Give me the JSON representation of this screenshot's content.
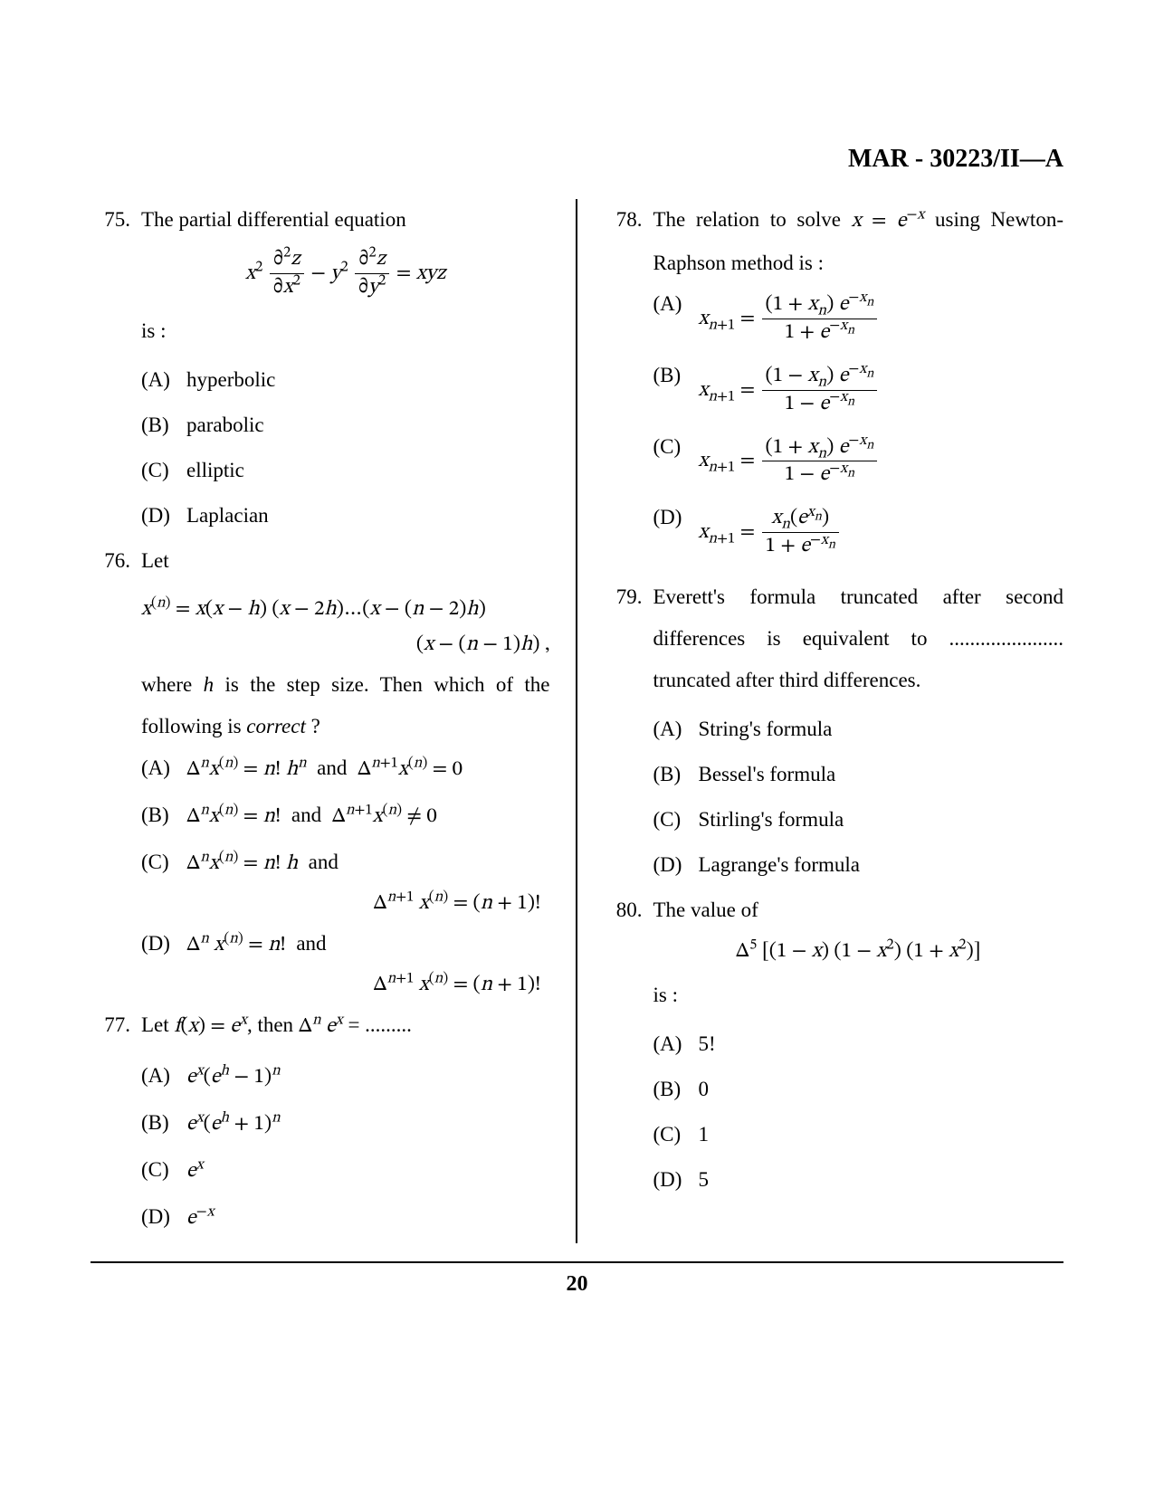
{
  "header": "MAR - 30223/II—A",
  "pageNumber": "20",
  "colors": {
    "text": "#000000",
    "background": "#ffffff",
    "rule": "#000000"
  },
  "typography": {
    "body_fontsize_pt": 17,
    "header_fontsize_pt": 21,
    "line_height": 2.0
  },
  "questions": [
    {
      "num": "75.",
      "stem": "The partial differential equation",
      "equation_html": "<span class='eq'><span class='italic'>x</span><sup>2</sup> <span class='frac'><span class='num'>∂<sup>2</sup><span class='italic'>z</span></span><span class='den'>∂<span class='italic'>x</span><sup>2</sup></span></span> − <span class='italic'>y</span><sup>2</sup> <span class='frac'><span class='num'>∂<sup>2</sup><span class='italic'>z</span></span><span class='den'>∂<span class='italic'>y</span><sup>2</sup></span></span> = <span class='italic'>xyz</span></span>",
      "post": "is :",
      "options": [
        {
          "label": "(A)",
          "html": "hyperbolic"
        },
        {
          "label": "(B)",
          "html": "parabolic"
        },
        {
          "label": "(C)",
          "html": "elliptic"
        },
        {
          "label": "(D)",
          "html": "Laplacian"
        }
      ]
    },
    {
      "num": "76.",
      "stem": "Let",
      "equation_html": "<span class='eq'><span class='italic'>x</span><sup>(<span class='italic'>n</span>)</sup> = <span class='italic'>x</span>(<span class='italic'>x</span> − <span class='italic'>h</span>) (<span class='italic'>x</span> − 2<span class='italic'>h</span>)…(<span class='italic'>x</span> − (<span class='italic'>n</span> − 2)<span class='italic'>h</span>)</span>",
      "equation2_html": "<span class='eq'>(<span class='italic'>x</span> − (<span class='italic'>n</span> − 1)<span class='italic'>h</span>) ,</span>",
      "post_html": "where <span class='italic'>h</span> is the step size. Then which of the following is <span class='italic'>correct</span> ?",
      "options": [
        {
          "label": "(A)",
          "html": "<span class='eq'>Δ<sup><span class='italic'>n</span></sup><span class='italic'>x</span><sup>(<span class='italic'>n</span>)</sup> = <span class='italic'>n</span>! <span class='italic'>h</span><sup><span class='italic'>n</span></sup></span>&nbsp; and &nbsp;<span class='eq'>Δ<sup><span class='italic'>n</span>+1</sup><span class='italic'>x</span><sup>(<span class='italic'>n</span>)</sup> = 0</span>"
        },
        {
          "label": "(B)",
          "html": "<span class='eq'>Δ<sup><span class='italic'>n</span></sup><span class='italic'>x</span><sup>(<span class='italic'>n</span>)</sup> = <span class='italic'>n</span>!</span>&nbsp; and &nbsp;<span class='eq'>Δ<sup><span class='italic'>n</span>+1</sup><span class='italic'>x</span><sup>(<span class='italic'>n</span>)</sup> ≠ 0</span>"
        },
        {
          "label": "(C)",
          "html": "<span class='eq'>Δ<sup><span class='italic'>n</span></sup><span class='italic'>x</span><sup>(<span class='italic'>n</span>)</sup> = <span class='italic'>n</span>! <span class='italic'>h</span></span>&nbsp; and",
          "extra_html": "<span class='eq'>Δ<sup><span class='italic'>n</span>+1</sup> <span class='italic'>x</span><sup>(<span class='italic'>n</span>)</sup> = (<span class='italic'>n</span> + 1)!</span>"
        },
        {
          "label": "(D)",
          "html": "<span class='eq'>Δ<sup><span class='italic'>n</span></sup> <span class='italic'>x</span><sup>(<span class='italic'>n</span>)</sup> = <span class='italic'>n</span>!</span>&nbsp; and",
          "extra_html": "<span class='eq'>Δ<sup><span class='italic'>n</span>+1</sup> <span class='italic'>x</span><sup>(<span class='italic'>n</span>)</sup> = (<span class='italic'>n</span> + 1)!</span>"
        }
      ]
    },
    {
      "num": "77.",
      "stem_html": "Let <span class='eq'><span class='italic'>f</span>(<span class='italic'>x</span>) = <span class='italic'>e</span><sup><span class='italic'>x</span></sup></span>, then <span class='eq'>Δ<sup><span class='italic'>n</span></sup> <span class='italic'>e</span><sup><span class='italic'>x</span></sup></span> = .........",
      "options": [
        {
          "label": "(A)",
          "html": "<span class='eq'><span class='italic'>e</span><sup><span class='italic'>x</span></sup>(<span class='italic'>e</span><sup><span class='italic'>h</span></sup> − 1)<sup><span class='italic'>n</span></sup></span>"
        },
        {
          "label": "(B)",
          "html": "<span class='eq'><span class='italic'>e</span><sup><span class='italic'>x</span></sup>(<span class='italic'>e</span><sup><span class='italic'>h</span></sup> + 1)<sup><span class='italic'>n</span></sup></span>"
        },
        {
          "label": "(C)",
          "html": "<span class='eq'><span class='italic'>e</span><sup><span class='italic'>x</span></sup></span>"
        },
        {
          "label": "(D)",
          "html": "<span class='eq'><span class='italic'>e</span><sup>−<span class='italic'>x</span></sup></span>"
        }
      ]
    },
    {
      "num": "78.",
      "stem_html": "The relation to solve <span class='eq'><span class='italic'>x</span> = <span class='italic'>e</span><sup>−<span class='italic'>x</span></sup></span> using Newton-Raphson method is :",
      "options": [
        {
          "label": "(A)",
          "html": "<span class='eq'><span class='italic'>x</span><sub><span class='italic'>n</span>+1</sub> = <span class='frac'><span class='num'>(1 + <span class='italic'>x</span><sub><span class='italic'>n</span></sub>) <span class='italic'>e</span><sup>−<span class='italic'>x</span><sub><span class='italic'>n</span></sub></sup></span><span class='den'>1 + <span class='italic'>e</span><sup>−<span class='italic'>x</span><sub><span class='italic'>n</span></sub></sup></span></span></span>"
        },
        {
          "label": "(B)",
          "html": "<span class='eq'><span class='italic'>x</span><sub><span class='italic'>n</span>+1</sub> = <span class='frac'><span class='num'>(1 − <span class='italic'>x</span><sub><span class='italic'>n</span></sub>) <span class='italic'>e</span><sup>−<span class='italic'>x</span><sub><span class='italic'>n</span></sub></sup></span><span class='den'>1 − <span class='italic'>e</span><sup>−<span class='italic'>x</span><sub><span class='italic'>n</span></sub></sup></span></span></span>"
        },
        {
          "label": "(C)",
          "html": "<span class='eq'><span class='italic'>x</span><sub><span class='italic'>n</span>+1</sub> = <span class='frac'><span class='num'>(1 + <span class='italic'>x</span><sub><span class='italic'>n</span></sub>) <span class='italic'>e</span><sup>−<span class='italic'>x</span><sub><span class='italic'>n</span></sub></sup></span><span class='den'>1 − <span class='italic'>e</span><sup>−<span class='italic'>x</span><sub><span class='italic'>n</span></sub></sup></span></span></span>"
        },
        {
          "label": "(D)",
          "html": "<span class='eq'><span class='italic'>x</span><sub><span class='italic'>n</span>+1</sub> = <span class='frac'><span class='num'><span class='italic'>x</span><sub><span class='italic'>n</span></sub>(<span class='italic'>e</span><sup><span class='italic'>x</span><sub><span class='italic'>n</span></sub></sup>)</span><span class='den'>1 + <span class='italic'>e</span><sup>−<span class='italic'>x</span><sub><span class='italic'>n</span></sub></sup></span></span></span>"
        }
      ]
    },
    {
      "num": "79.",
      "stem": "Everett's formula truncated after second differences is equivalent to ...................... truncated after third differences.",
      "options": [
        {
          "label": "(A)",
          "html": "String's formula"
        },
        {
          "label": "(B)",
          "html": "Bessel's formula"
        },
        {
          "label": "(C)",
          "html": "Stirling's formula"
        },
        {
          "label": "(D)",
          "html": "Lagrange's formula"
        }
      ]
    },
    {
      "num": "80.",
      "stem": "The value of",
      "equation_html": "<span class='eq'>Δ<sup>5</sup> [(1 − <span class='italic'>x</span>) (1 − <span class='italic'>x</span><sup>2</sup>) (1 + <span class='italic'>x</span><sup>2</sup>)]</span>",
      "post": "is :",
      "options": [
        {
          "label": "(A)",
          "html": "5!"
        },
        {
          "label": "(B)",
          "html": "0"
        },
        {
          "label": "(C)",
          "html": "1"
        },
        {
          "label": "(D)",
          "html": "5"
        }
      ]
    }
  ]
}
